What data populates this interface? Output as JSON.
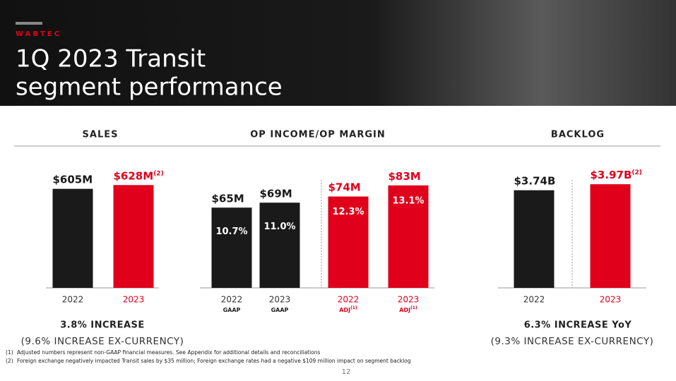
{
  "header": {
    "brand": "WABTEC",
    "title_lines": [
      "1Q 2023 Transit",
      "segment performance"
    ]
  },
  "chart_data": [
    {
      "type": "bar",
      "title": "SALES",
      "categories": [
        "2022",
        "2023"
      ],
      "values": [
        605,
        628
      ],
      "value_labels": [
        "$605M",
        "$628M"
      ],
      "label_notes": [
        null,
        "(2)"
      ],
      "colors": [
        "#1a1a1a",
        "#e0001b"
      ],
      "summary": "3.8% INCREASE",
      "summary_note": "(9.6% INCREASE EX-CURRENCY)"
    },
    {
      "type": "bar",
      "title": "OP INCOME/OP MARGIN",
      "categories": [
        "2022",
        "2023",
        "2022",
        "2023"
      ],
      "category_notes": [
        "GAAP",
        "GAAP",
        "ADJ",
        "ADJ"
      ],
      "category_note_refs": [
        null,
        null,
        "(1)",
        "(1)"
      ],
      "values": [
        65,
        69,
        74,
        83
      ],
      "value_labels": [
        "$65M",
        "$69M",
        "$74M",
        "$83M"
      ],
      "margins": [
        10.7,
        11.0,
        12.3,
        13.1
      ],
      "margin_labels": [
        "10.7%",
        "11.0%",
        "12.3%",
        "13.1%"
      ],
      "colors": [
        "#1a1a1a",
        "#1a1a1a",
        "#e0001b",
        "#e0001b"
      ]
    },
    {
      "type": "bar",
      "title": "BACKLOG",
      "categories": [
        "2022",
        "2023"
      ],
      "values": [
        3.74,
        3.97
      ],
      "value_labels": [
        "$3.74B",
        "$3.97B"
      ],
      "label_notes": [
        null,
        "(2)"
      ],
      "colors": [
        "#1a1a1a",
        "#e0001b"
      ],
      "summary": "6.3% INCREASE YoY",
      "summary_note": "(9.3% INCREASE EX-CURRENCY)"
    }
  ],
  "footnotes": [
    {
      "ref": "(1)",
      "text": "Adjusted numbers represent non-GAAP financial measures. See Appendix for additional details and reconciliations"
    },
    {
      "ref": "(2)",
      "text": "Foreign exchange negatively impacted Transit sales by $35 million; Foreign exchange rates had a negative $109 million impact on segment backlog"
    }
  ],
  "page_number": "12"
}
